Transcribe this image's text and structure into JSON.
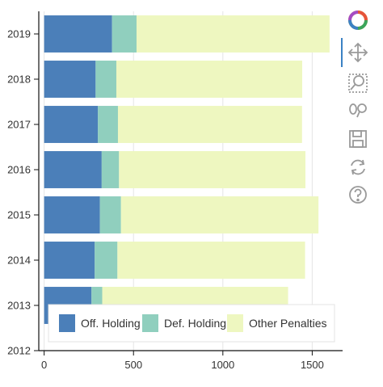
{
  "chart_data": {
    "type": "bar",
    "orientation": "horizontal",
    "stacked": true,
    "categories": [
      "2012",
      "2013",
      "2014",
      "2015",
      "2016",
      "2017",
      "2018",
      "2019"
    ],
    "series": [
      {
        "name": "Off. Holding",
        "color": "#4b7fb9",
        "values": [
          null,
          265,
          283,
          312,
          322,
          301,
          288,
          380
        ]
      },
      {
        "name": "Def. Holding",
        "color": "#90cfbe",
        "values": [
          null,
          60,
          127,
          118,
          97,
          112,
          116,
          137
        ]
      },
      {
        "name": "Other Penalties",
        "color": "#eef7c0",
        "values": [
          null,
          1040,
          1050,
          1105,
          1043,
          1030,
          1040,
          1080
        ]
      }
    ],
    "x_ticks": [
      "0",
      "500",
      "1000",
      "1500"
    ],
    "xlim": [
      -30,
      1670
    ],
    "grid": "vertical",
    "legend_position": "bottom-left"
  },
  "toolbar": {
    "logo_icon": "bokeh-logo-icon",
    "tools": [
      "pan-icon",
      "box-zoom-icon",
      "wheel-zoom-icon",
      "save-icon",
      "reset-icon",
      "help-icon"
    ],
    "active_tool": "pan-icon"
  }
}
